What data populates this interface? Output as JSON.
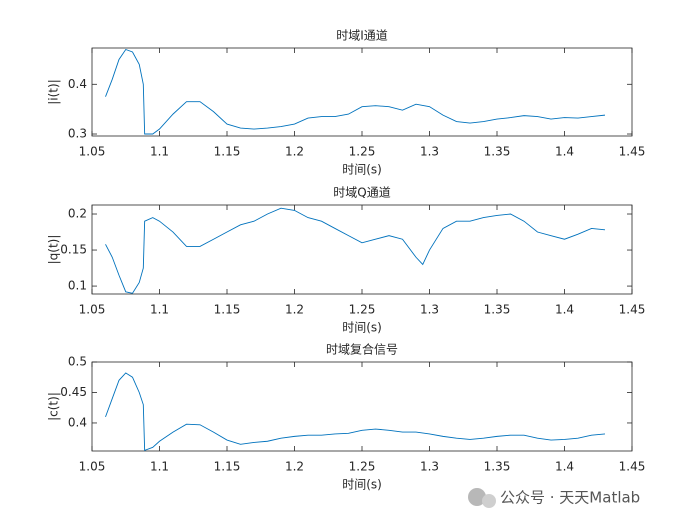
{
  "chart_data": [
    {
      "type": "line",
      "title": "时域I通道",
      "xlabel": "时间(s)",
      "ylabel": "|i(t)|",
      "color": "#0072bd",
      "x": [
        1.06,
        1.065,
        1.07,
        1.075,
        1.08,
        1.085,
        1.088,
        1.089,
        1.095,
        1.1,
        1.11,
        1.12,
        1.13,
        1.14,
        1.15,
        1.16,
        1.17,
        1.18,
        1.19,
        1.2,
        1.21,
        1.22,
        1.23,
        1.24,
        1.25,
        1.26,
        1.27,
        1.28,
        1.29,
        1.3,
        1.31,
        1.32,
        1.33,
        1.34,
        1.35,
        1.36,
        1.37,
        1.38,
        1.39,
        1.4,
        1.41,
        1.42,
        1.43
      ],
      "values": [
        0.375,
        0.41,
        0.45,
        0.47,
        0.465,
        0.44,
        0.4,
        0.3,
        0.3,
        0.31,
        0.34,
        0.365,
        0.365,
        0.345,
        0.32,
        0.312,
        0.31,
        0.312,
        0.315,
        0.32,
        0.332,
        0.335,
        0.335,
        0.34,
        0.355,
        0.357,
        0.355,
        0.348,
        0.36,
        0.355,
        0.338,
        0.325,
        0.322,
        0.325,
        0.33,
        0.333,
        0.337,
        0.335,
        0.33,
        0.333,
        0.332,
        0.335,
        0.338
      ],
      "xlim": [
        1.05,
        1.45
      ],
      "xticks": [
        1.05,
        1.1,
        1.15,
        1.2,
        1.25,
        1.3,
        1.35,
        1.4,
        1.45
      ],
      "ylim": [
        0.296,
        0.473
      ],
      "yticks": [
        0.3,
        0.4
      ]
    },
    {
      "type": "line",
      "title": "时域Q通道",
      "xlabel": "时间(s)",
      "ylabel": "|q(t)|",
      "color": "#0072bd",
      "x": [
        1.06,
        1.065,
        1.07,
        1.075,
        1.08,
        1.085,
        1.088,
        1.089,
        1.095,
        1.1,
        1.11,
        1.12,
        1.13,
        1.14,
        1.15,
        1.16,
        1.17,
        1.18,
        1.19,
        1.2,
        1.21,
        1.22,
        1.23,
        1.24,
        1.25,
        1.26,
        1.27,
        1.28,
        1.29,
        1.295,
        1.3,
        1.31,
        1.32,
        1.33,
        1.34,
        1.35,
        1.36,
        1.37,
        1.38,
        1.39,
        1.4,
        1.41,
        1.42,
        1.43
      ],
      "values": [
        0.158,
        0.14,
        0.115,
        0.092,
        0.09,
        0.105,
        0.125,
        0.19,
        0.195,
        0.19,
        0.175,
        0.155,
        0.155,
        0.165,
        0.175,
        0.185,
        0.19,
        0.2,
        0.208,
        0.205,
        0.195,
        0.19,
        0.18,
        0.17,
        0.16,
        0.165,
        0.17,
        0.165,
        0.14,
        0.13,
        0.15,
        0.18,
        0.19,
        0.19,
        0.195,
        0.198,
        0.2,
        0.19,
        0.175,
        0.17,
        0.165,
        0.172,
        0.18,
        0.178
      ],
      "xlim": [
        1.05,
        1.45
      ],
      "xticks": [
        1.05,
        1.1,
        1.15,
        1.2,
        1.25,
        1.3,
        1.35,
        1.4,
        1.45
      ],
      "ylim": [
        0.089,
        0.2125
      ],
      "yticks": [
        0.1,
        0.15,
        0.2
      ]
    },
    {
      "type": "line",
      "title": "时域复合信号",
      "xlabel": "时间(s)",
      "ylabel": "|c(t)|",
      "color": "#0072bd",
      "x": [
        1.06,
        1.065,
        1.07,
        1.075,
        1.08,
        1.085,
        1.088,
        1.089,
        1.095,
        1.1,
        1.11,
        1.12,
        1.13,
        1.14,
        1.15,
        1.16,
        1.17,
        1.18,
        1.19,
        1.2,
        1.21,
        1.22,
        1.23,
        1.24,
        1.25,
        1.26,
        1.27,
        1.28,
        1.29,
        1.3,
        1.31,
        1.32,
        1.33,
        1.34,
        1.35,
        1.36,
        1.37,
        1.38,
        1.39,
        1.4,
        1.41,
        1.42,
        1.43
      ],
      "values": [
        0.41,
        0.44,
        0.47,
        0.482,
        0.475,
        0.45,
        0.43,
        0.355,
        0.36,
        0.37,
        0.385,
        0.398,
        0.397,
        0.385,
        0.372,
        0.365,
        0.368,
        0.37,
        0.375,
        0.378,
        0.38,
        0.38,
        0.382,
        0.383,
        0.388,
        0.39,
        0.388,
        0.385,
        0.385,
        0.382,
        0.378,
        0.375,
        0.373,
        0.375,
        0.378,
        0.38,
        0.38,
        0.375,
        0.372,
        0.373,
        0.375,
        0.38,
        0.382
      ],
      "xlim": [
        1.05,
        1.45
      ],
      "xticks": [
        1.05,
        1.1,
        1.15,
        1.2,
        1.25,
        1.3,
        1.35,
        1.4,
        1.45
      ],
      "ylim": [
        0.354,
        0.5
      ],
      "yticks": [
        0.4,
        0.45,
        0.5
      ]
    }
  ],
  "watermark": "公众号 · 天天Matlab"
}
